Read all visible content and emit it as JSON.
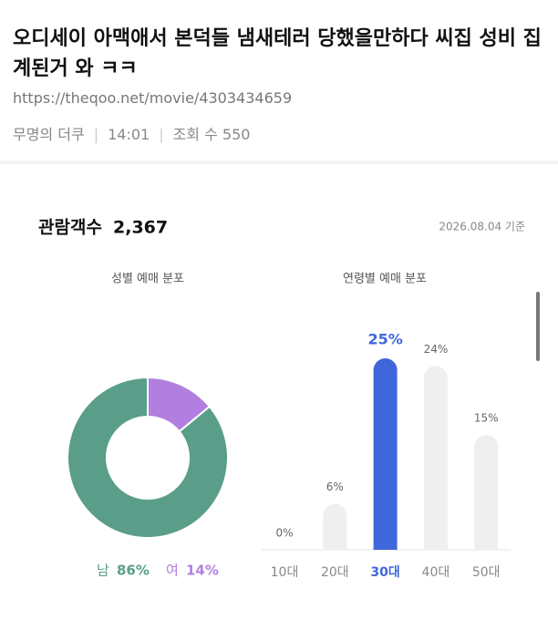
{
  "header": {
    "title": "오디세이 아맥애서 본덕들 냄새테러 당했을만하다 씨집 성비 집계된거 와 ㅋㅋ",
    "url": "https://theqoo.net/movie/4303434659",
    "author": "무명의 더쿠",
    "time": "14:01",
    "views_label": "조회 수",
    "views": "550"
  },
  "card": {
    "audience_label": "관람객수",
    "audience": "2,367",
    "date": "2026.08.04 기준"
  },
  "chart_data": [
    {
      "type": "pie",
      "title": "성별 예매 분포",
      "donut": true,
      "categories": [
        "남",
        "여"
      ],
      "values": [
        86,
        14
      ],
      "value_labels": [
        "86%",
        "14%"
      ],
      "colors": [
        "#5a9e8a",
        "#b27fe0"
      ]
    },
    {
      "type": "bar",
      "title": "연령별 예매 분포",
      "categories": [
        "10대",
        "20대",
        "30대",
        "40대",
        "50대"
      ],
      "values": [
        0,
        6,
        25,
        24,
        15
      ],
      "value_labels": [
        "0%",
        "6%",
        "25%",
        "24%",
        "15%"
      ],
      "colors": [
        "#efefef",
        "#efefef",
        "#3f67db",
        "#efefef",
        "#efefef"
      ],
      "label_colors": [
        "#888888",
        "#888888",
        "#3f67db",
        "#888888",
        "#888888"
      ]
    }
  ]
}
